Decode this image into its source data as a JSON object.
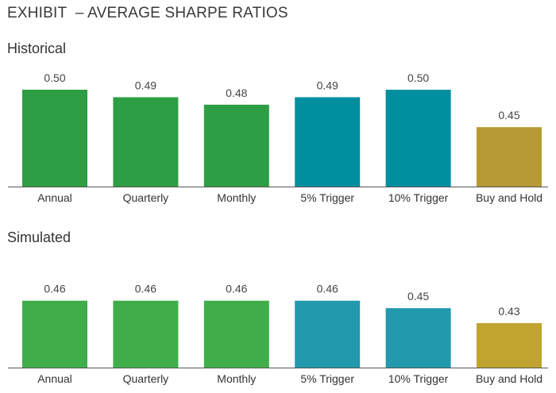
{
  "title": "EXHIBIT  – AVERAGE SHARPE RATIOS",
  "colors": {
    "green": "#2e9e44",
    "green_light": "#3fae4a",
    "teal": "#008f9e",
    "teal_light": "#2299ad",
    "gold": "#b89a35",
    "gold_light": "#c0a42f",
    "axis": "#555555"
  },
  "chart_data": [
    {
      "type": "bar",
      "title": "Historical",
      "categories": [
        "Annual",
        "Quarterly",
        "Monthly",
        "5% Trigger",
        "10% Trigger",
        "Buy and Hold"
      ],
      "values": [
        0.5,
        0.49,
        0.48,
        0.49,
        0.5,
        0.45
      ],
      "value_labels": [
        "0.50",
        "0.49",
        "0.48",
        "0.49",
        "0.50",
        "0.45"
      ],
      "bar_colors": [
        "green",
        "green",
        "green",
        "teal",
        "teal",
        "gold"
      ],
      "grid": false
    },
    {
      "type": "bar",
      "title": "Simulated",
      "categories": [
        "Annual",
        "Quarterly",
        "Monthly",
        "5% Trigger",
        "10% Trigger",
        "Buy and Hold"
      ],
      "values": [
        0.46,
        0.46,
        0.46,
        0.46,
        0.45,
        0.43
      ],
      "value_labels": [
        "0.46",
        "0.46",
        "0.46",
        "0.46",
        "0.45",
        "0.43"
      ],
      "bar_colors": [
        "green_light",
        "green_light",
        "green_light",
        "teal_light",
        "teal_light",
        "gold_light"
      ],
      "grid": false
    }
  ]
}
